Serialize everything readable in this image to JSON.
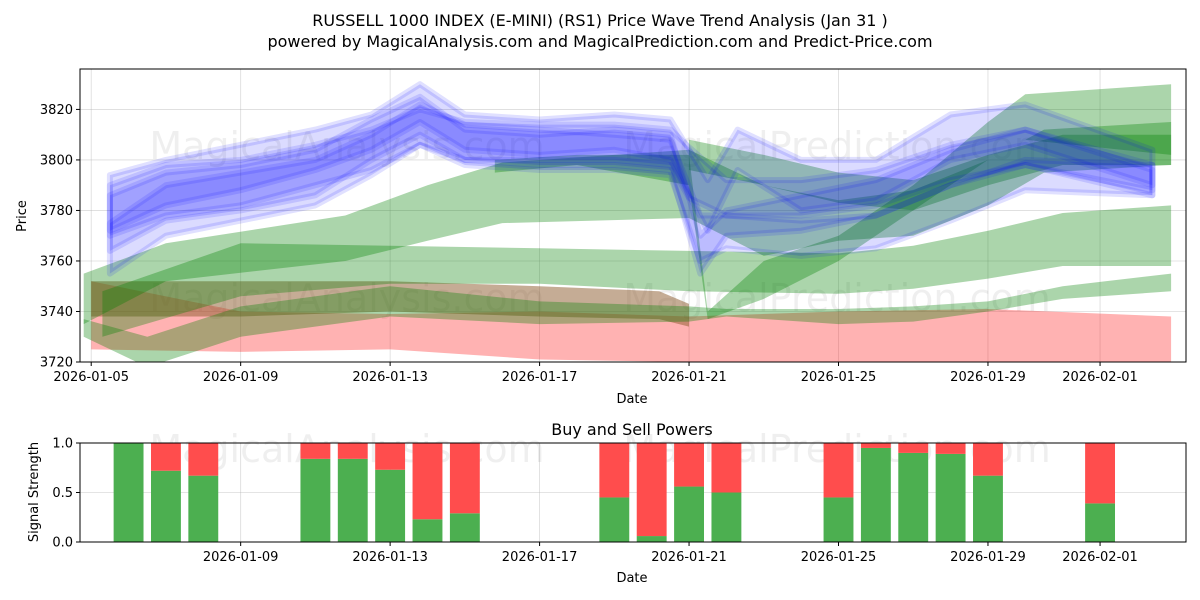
{
  "header": {
    "title": "RUSSELL 1000 INDEX (E-MINI) (RS1) Price Wave Trend Analysis (Jan 31 )",
    "subtitle": "powered by MagicalAnalysis.com and MagicalPrediction.com and Predict-Price.com"
  },
  "watermarks": [
    "MagicalAnalysis.com",
    "MagicalPrediction.com",
    "MagicalAnalysis.com",
    "MagicalPrediction.com",
    "MagicalAnalysis.com",
    "MagicalPrediction.com"
  ],
  "colors": {
    "blue": "#0000ff",
    "green": "#008000",
    "red": "#ff0000",
    "brown": "#8b5a2b",
    "bar_green": "#4caf50",
    "bar_red": "#ff4d4d"
  },
  "chart_data": [
    {
      "type": "area",
      "title": "",
      "xlabel": "Date",
      "ylabel": "Price",
      "x_start": "2026-01-05",
      "x_range_days": [
        -0.3,
        29.3
      ],
      "ylim": [
        3720,
        3836
      ],
      "yticks": [
        3720,
        3740,
        3760,
        3780,
        3800,
        3820
      ],
      "xticks": [
        {
          "day": 0,
          "label": "2026-01-05"
        },
        {
          "day": 4,
          "label": "2026-01-09"
        },
        {
          "day": 8,
          "label": "2026-01-13"
        },
        {
          "day": 12,
          "label": "2026-01-17"
        },
        {
          "day": 16,
          "label": "2026-01-21"
        },
        {
          "day": 20,
          "label": "2026-01-25"
        },
        {
          "day": 24,
          "label": "2026-01-29"
        },
        {
          "day": 27,
          "label": "2026-02-01"
        }
      ],
      "bands": [
        {
          "color": "red",
          "opacity": 0.3,
          "x": [
            0,
            4,
            8,
            12,
            16,
            20,
            24,
            28.9
          ],
          "upper": [
            3752,
            3740,
            3739,
            3740,
            3738,
            3740,
            3741,
            3738
          ],
          "lower": [
            3725,
            3724,
            3725,
            3721,
            3720,
            3718,
            3717,
            3718
          ]
        },
        {
          "color": "brown",
          "opacity": 0.5,
          "x": [
            0,
            4,
            8,
            12,
            15.2,
            16
          ],
          "upper": [
            3752,
            3752,
            3752,
            3750,
            3748,
            3743
          ],
          "lower": [
            3738,
            3738,
            3740,
            3738,
            3737,
            3734
          ]
        },
        {
          "color": "green",
          "opacity": 0.33,
          "x": [
            -0.2,
            1.5,
            4,
            8,
            12,
            16,
            17,
            20,
            22,
            24,
            26,
            28.9
          ],
          "upper": [
            3737,
            3730,
            3742,
            3750,
            3744,
            3742,
            3741,
            3741,
            3742,
            3744,
            3750,
            3755
          ],
          "lower": [
            3730,
            3718,
            3730,
            3738,
            3735,
            3736,
            3738,
            3735,
            3736,
            3740,
            3745,
            3748
          ]
        },
        {
          "color": "green",
          "opacity": 0.33,
          "x": [
            0.3,
            4,
            8,
            12,
            16,
            20,
            22,
            24,
            26,
            28.9
          ],
          "upper": [
            3748,
            3767,
            3766,
            3765,
            3764,
            3763,
            3766,
            3772,
            3779,
            3782
          ],
          "lower": [
            3730,
            3746,
            3751,
            3751,
            3748,
            3747,
            3749,
            3753,
            3758,
            3758
          ]
        },
        {
          "color": "green",
          "opacity": 0.33,
          "x": [
            -0.2,
            2,
            6.8,
            9,
            11,
            16,
            18,
            20,
            22,
            24,
            25.5,
            28.9
          ],
          "upper": [
            3755,
            3767,
            3778,
            3790,
            3799,
            3804,
            3790,
            3784,
            3788,
            3800,
            3812,
            3815
          ],
          "lower": [
            3735,
            3752,
            3760,
            3768,
            3775,
            3777,
            3762,
            3768,
            3770,
            3782,
            3795,
            3798
          ]
        },
        {
          "color": "green",
          "opacity": 0.33,
          "x": [
            10.8,
            13,
            16,
            16.5,
            18,
            20,
            22,
            24,
            25,
            28.9
          ],
          "upper": [
            3800,
            3802,
            3802,
            3740,
            3760,
            3770,
            3790,
            3815,
            3826,
            3830
          ],
          "lower": [
            3795,
            3798,
            3790,
            3737,
            3745,
            3760,
            3780,
            3800,
            3808,
            3802
          ]
        },
        {
          "color": "green",
          "opacity": 0.33,
          "x": [
            16,
            18,
            20,
            22,
            24,
            26,
            28.9
          ],
          "upper": [
            3808,
            3802,
            3795,
            3792,
            3802,
            3810,
            3810
          ]
        }
      ],
      "blue_bands": [
        {
          "x": [
            0.5,
            2,
            4,
            6,
            7.5,
            8.8,
            10,
            12,
            14,
            15.5,
            16,
            17,
            19,
            21,
            23,
            25,
            28.4
          ],
          "upper": [
            3790,
            3798,
            3800,
            3806,
            3812,
            3820,
            3815,
            3814,
            3814,
            3812,
            3805,
            3792,
            3792,
            3796,
            3806,
            3812,
            3798
          ],
          "lower": [
            3770,
            3778,
            3782,
            3790,
            3796,
            3806,
            3800,
            3800,
            3800,
            3798,
            3785,
            3778,
            3778,
            3782,
            3792,
            3798,
            3788
          ]
        },
        {
          "x": [
            0.5,
            2,
            4,
            6,
            7.5,
            8.8,
            10,
            12,
            14,
            15.5,
            16.3,
            17,
            19,
            21,
            23,
            25,
            28.4
          ],
          "upper": [
            3786,
            3795,
            3798,
            3804,
            3816,
            3825,
            3812,
            3810,
            3812,
            3810,
            3770,
            3780,
            3786,
            3792,
            3804,
            3812,
            3796
          ],
          "lower": [
            3764,
            3776,
            3780,
            3786,
            3800,
            3810,
            3800,
            3798,
            3798,
            3796,
            3755,
            3770,
            3772,
            3778,
            3790,
            3798,
            3786
          ]
        },
        {
          "x": [
            0.5,
            2,
            4,
            6,
            7.5,
            8.8,
            10,
            12,
            14,
            15.5,
            16.5,
            17.3,
            19,
            21,
            23,
            25,
            28.4
          ],
          "upper": [
            3794,
            3800,
            3806,
            3812,
            3818,
            3830,
            3818,
            3816,
            3818,
            3816,
            3792,
            3812,
            3800,
            3800,
            3818,
            3822,
            3804
          ],
          "lower": [
            3772,
            3782,
            3788,
            3796,
            3804,
            3815,
            3804,
            3802,
            3804,
            3800,
            3772,
            3796,
            3780,
            3784,
            3800,
            3806,
            3790
          ]
        },
        {
          "x": [
            0.5,
            2,
            4,
            6,
            7.5,
            8.8,
            10,
            12,
            14,
            15.5,
            16.3,
            17,
            19,
            21,
            23,
            25,
            28.4
          ],
          "upper": [
            3775,
            3790,
            3795,
            3800,
            3810,
            3822,
            3814,
            3812,
            3810,
            3808,
            3778,
            3778,
            3776,
            3778,
            3790,
            3800,
            3798
          ],
          "lower": [
            3755,
            3770,
            3776,
            3782,
            3794,
            3806,
            3798,
            3796,
            3796,
            3794,
            3760,
            3765,
            3762,
            3765,
            3776,
            3788,
            3786
          ]
        }
      ]
    },
    {
      "type": "bar",
      "title": "Buy and Sell Powers",
      "xlabel": "Date",
      "ylabel": "Signal Strength",
      "ylim": [
        0,
        1
      ],
      "yticks": [
        {
          "v": 0,
          "label": "0.0"
        },
        {
          "v": 0.5,
          "label": "0.5"
        },
        {
          "v": 1,
          "label": "1.0"
        }
      ],
      "xticks": [
        {
          "day": 4,
          "label": "2026-01-09"
        },
        {
          "day": 8,
          "label": "2026-01-13"
        },
        {
          "day": 12,
          "label": "2026-01-17"
        },
        {
          "day": 16,
          "label": "2026-01-21"
        },
        {
          "day": 20,
          "label": "2026-01-25"
        },
        {
          "day": 24,
          "label": "2026-01-29"
        },
        {
          "day": 27,
          "label": "2026-02-01"
        }
      ],
      "days": [
        1,
        2,
        3,
        6,
        7,
        8,
        9,
        10,
        14,
        15,
        16,
        17,
        20,
        21,
        22,
        23,
        24,
        27
      ],
      "buy": [
        1.0,
        0.72,
        0.67,
        0.84,
        0.84,
        0.73,
        0.23,
        0.29,
        0.45,
        0.06,
        0.56,
        0.5,
        0.45,
        0.95,
        0.9,
        0.89,
        0.67,
        0.39
      ],
      "sell": [
        0.0,
        0.28,
        0.33,
        0.16,
        0.16,
        0.27,
        0.77,
        0.71,
        0.55,
        0.94,
        0.44,
        0.5,
        0.55,
        0.05,
        0.1,
        0.11,
        0.33,
        0.61
      ]
    }
  ]
}
